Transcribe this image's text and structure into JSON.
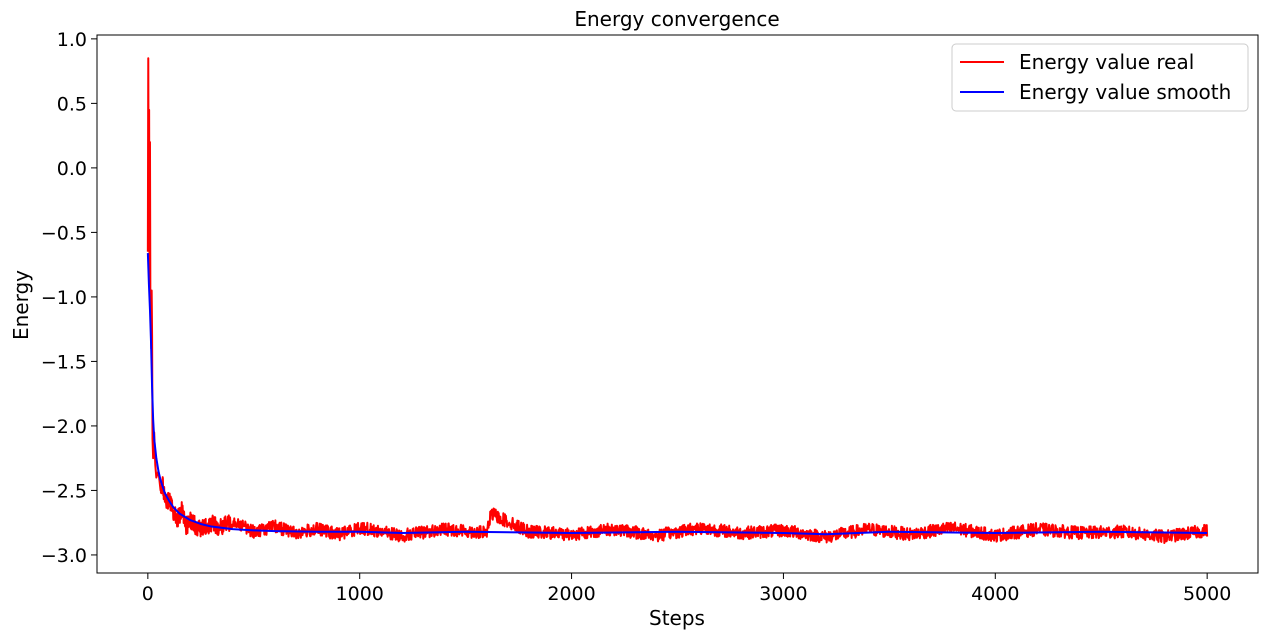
{
  "chart_data": {
    "type": "line",
    "title": "Energy convergence",
    "xlabel": "Steps",
    "ylabel": "Energy",
    "xlim": [
      -240,
      5240
    ],
    "ylim": [
      -3.14,
      1.03
    ],
    "xticks": [
      0,
      1000,
      2000,
      3000,
      4000,
      5000
    ],
    "xtick_labels": [
      "0",
      "1000",
      "2000",
      "3000",
      "4000",
      "5000"
    ],
    "yticks": [
      1.0,
      0.5,
      0.0,
      -0.5,
      -1.0,
      -1.5,
      -2.0,
      -2.5,
      -3.0
    ],
    "ytick_labels": [
      "1.0",
      "0.5",
      "0.0",
      "−0.5",
      "−1.0",
      "−1.5",
      "−2.0",
      "−2.5",
      "−3.0"
    ],
    "grid": false,
    "legend_position": "top-right",
    "series": [
      {
        "name": "Energy value real",
        "color": "#ff0000",
        "x": [
          0,
          2,
          4,
          6,
          8,
          10,
          12,
          14,
          16,
          18,
          20,
          22,
          25,
          30,
          35,
          40,
          50,
          60,
          70,
          80,
          90,
          100,
          120,
          140,
          160,
          180,
          200,
          250,
          300,
          350,
          400,
          500,
          600,
          700,
          800,
          900,
          1000,
          1200,
          1400,
          1600,
          1620,
          1800,
          2000,
          2200,
          2400,
          2600,
          2800,
          3000,
          3200,
          3400,
          3600,
          3800,
          4000,
          4200,
          4400,
          4600,
          4800,
          5000
        ],
        "y": [
          -0.65,
          0.85,
          -0.3,
          0.45,
          -0.9,
          0.2,
          -1.1,
          -0.95,
          -1.4,
          -0.95,
          -1.3,
          -2.1,
          -2.25,
          -2.05,
          -2.3,
          -2.4,
          -2.35,
          -2.5,
          -2.45,
          -2.55,
          -2.6,
          -2.55,
          -2.68,
          -2.72,
          -2.66,
          -2.78,
          -2.74,
          -2.8,
          -2.76,
          -2.79,
          -2.73,
          -2.82,
          -2.78,
          -2.83,
          -2.8,
          -2.84,
          -2.79,
          -2.85,
          -2.8,
          -2.83,
          -2.68,
          -2.82,
          -2.84,
          -2.8,
          -2.85,
          -2.79,
          -2.83,
          -2.81,
          -2.86,
          -2.8,
          -2.84,
          -2.79,
          -2.85,
          -2.8,
          -2.83,
          -2.82,
          -2.86,
          -2.81
        ]
      },
      {
        "name": "Energy value smooth",
        "color": "#0000ff",
        "x": [
          0,
          5,
          10,
          15,
          20,
          25,
          30,
          40,
          50,
          60,
          80,
          100,
          120,
          150,
          200,
          250,
          300,
          400,
          500,
          600,
          800,
          1000,
          1200,
          1500,
          2000,
          2500,
          3000,
          3200,
          3500,
          4000,
          4500,
          5000
        ],
        "y": [
          -0.66,
          -0.9,
          -1.1,
          -1.35,
          -1.7,
          -1.95,
          -2.1,
          -2.25,
          -2.35,
          -2.42,
          -2.52,
          -2.58,
          -2.63,
          -2.68,
          -2.73,
          -2.76,
          -2.78,
          -2.8,
          -2.81,
          -2.815,
          -2.82,
          -2.82,
          -2.83,
          -2.82,
          -2.83,
          -2.82,
          -2.83,
          -2.84,
          -2.82,
          -2.83,
          -2.82,
          -2.83
        ]
      }
    ]
  }
}
